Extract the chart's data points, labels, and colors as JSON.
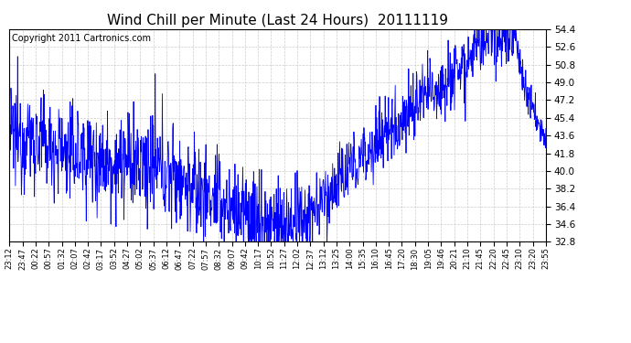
{
  "title": "Wind Chill per Minute (Last 24 Hours)  20111119",
  "copyright": "Copyright 2011 Cartronics.com",
  "line_color": "#0000FF",
  "bg_color": "#FFFFFF",
  "plot_bg_color": "#FFFFFF",
  "grid_color": "#C0C0C0",
  "yticks": [
    32.8,
    34.6,
    36.4,
    38.2,
    40.0,
    41.8,
    43.6,
    45.4,
    47.2,
    49.0,
    50.8,
    52.6,
    54.4
  ],
  "ylim": [
    32.8,
    54.4
  ],
  "xtick_labels": [
    "23:12",
    "23:47",
    "00:22",
    "00:57",
    "01:32",
    "02:07",
    "02:42",
    "03:17",
    "03:52",
    "04:27",
    "05:02",
    "05:37",
    "06:12",
    "06:47",
    "07:22",
    "07:57",
    "08:32",
    "09:07",
    "09:42",
    "10:17",
    "10:52",
    "11:27",
    "12:02",
    "12:37",
    "13:12",
    "13:25",
    "14:00",
    "15:35",
    "16:10",
    "16:45",
    "17:20",
    "18:30",
    "19:05",
    "19:46",
    "20:21",
    "21:10",
    "21:45",
    "22:20",
    "22:45",
    "23:10",
    "23:20",
    "23:55"
  ],
  "title_fontsize": 11,
  "copyright_fontsize": 7,
  "ylabel_fontsize": 8
}
